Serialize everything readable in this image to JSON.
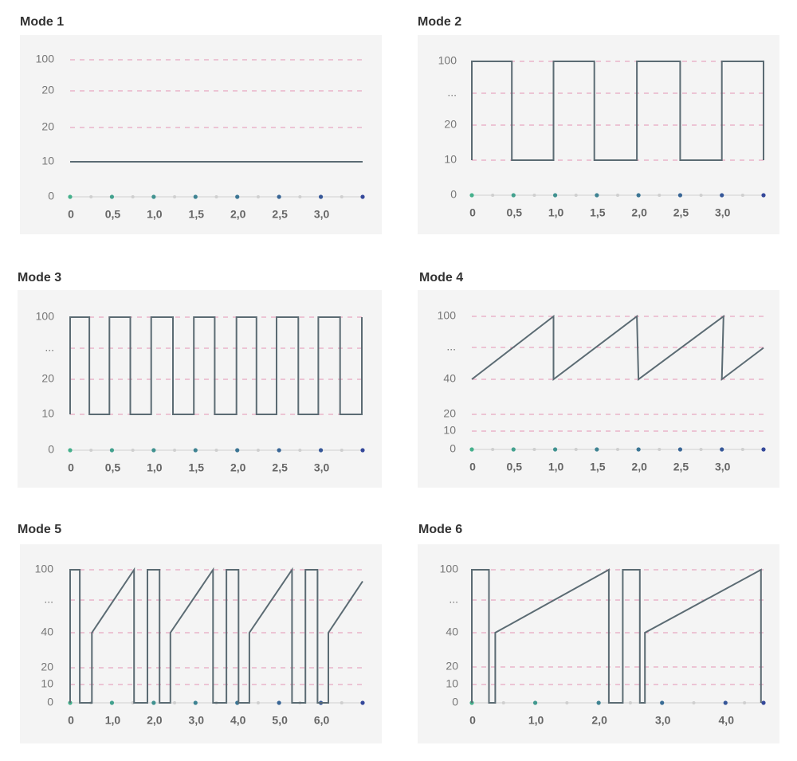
{
  "chart_data": [
    {
      "type": "line",
      "title": "Mode 1",
      "xlim": [
        0,
        3.5
      ],
      "xticks": [
        0,
        {
          "value": 0.5,
          "label": "0,5"
        },
        {
          "value": 1,
          "label": "1,0"
        },
        {
          "value": 1.5,
          "label": "1,5"
        },
        {
          "value": 2,
          "label": "2,0"
        },
        {
          "value": 2.5,
          "label": "2,5"
        },
        {
          "value": 3,
          "label": "3,0"
        }
      ],
      "yticks": [
        100,
        {
          "value": null,
          "label": "20"
        },
        20,
        10,
        0
      ],
      "grid": true,
      "color": "#5b6b73",
      "x": [
        0,
        3.5
      ],
      "values": [
        10,
        10
      ]
    },
    {
      "type": "line",
      "title": "Mode 2",
      "xlim": [
        0,
        3.5
      ],
      "xticks": [
        0,
        {
          "value": 0.5,
          "label": "0,5"
        },
        {
          "value": 1,
          "label": "1,0"
        },
        {
          "value": 1.5,
          "label": "1,5"
        },
        {
          "value": 2,
          "label": "2,0"
        },
        {
          "value": 2.5,
          "label": "2,5"
        },
        {
          "value": 3,
          "label": "3,0"
        }
      ],
      "yticks": [
        100,
        {
          "value": null,
          "label": "..."
        },
        20,
        10,
        0
      ],
      "grid": true,
      "color": "#5b6b73",
      "x": [
        0,
        0,
        0.48,
        0.48,
        0.98,
        0.98,
        1.47,
        1.47,
        1.98,
        1.98,
        2.5,
        2.5,
        3.0,
        3.0,
        3.5,
        3.5
      ],
      "values": [
        10,
        100,
        100,
        10,
        10,
        100,
        100,
        10,
        10,
        100,
        100,
        10,
        10,
        100,
        100,
        10
      ]
    },
    {
      "type": "line",
      "title": "Mode 3",
      "xlim": [
        0,
        3.5
      ],
      "xticks": [
        0,
        {
          "value": 0.5,
          "label": "0,5"
        },
        {
          "value": 1,
          "label": "1,0"
        },
        {
          "value": 1.5,
          "label": "1,5"
        },
        {
          "value": 2,
          "label": "2,0"
        },
        {
          "value": 2.5,
          "label": "2,5"
        },
        {
          "value": 3,
          "label": "3,0"
        }
      ],
      "yticks": [
        100,
        {
          "value": null,
          "label": "..."
        },
        20,
        10,
        0
      ],
      "grid": true,
      "color": "#5b6b73",
      "x": [
        0,
        0,
        0.23,
        0.23,
        0.47,
        0.47,
        0.72,
        0.72,
        0.97,
        0.97,
        1.23,
        1.23,
        1.48,
        1.48,
        1.73,
        1.73,
        1.99,
        1.99,
        2.23,
        2.23,
        2.47,
        2.47,
        2.73,
        2.73,
        2.97,
        2.97,
        3.23,
        3.23,
        3.49,
        3.49
      ],
      "values": [
        10,
        100,
        100,
        10,
        10,
        100,
        100,
        10,
        10,
        100,
        100,
        10,
        10,
        100,
        100,
        10,
        10,
        100,
        100,
        10,
        10,
        100,
        100,
        10,
        10,
        100,
        100,
        10,
        10,
        100
      ]
    },
    {
      "type": "line",
      "title": "Mode 4",
      "xlim": [
        0,
        3.5
      ],
      "xticks": [
        0,
        {
          "value": 0.5,
          "label": "0,5"
        },
        {
          "value": 1,
          "label": "1,0"
        },
        {
          "value": 1.5,
          "label": "1,5"
        },
        {
          "value": 2,
          "label": "2,0"
        },
        {
          "value": 2.5,
          "label": "2,5"
        },
        {
          "value": 3,
          "label": "3,0"
        }
      ],
      "yticks": [
        100,
        {
          "value": null,
          "label": "..."
        },
        40,
        20,
        10,
        0
      ],
      "grid": true,
      "color": "#5b6b73",
      "x": [
        0,
        0.98,
        0.98,
        1.98,
        2.0,
        3.02,
        3.0,
        3.5
      ],
      "values": [
        40,
        100,
        40,
        100,
        40,
        100,
        40,
        70
      ]
    },
    {
      "type": "line",
      "title": "Mode 5",
      "xlim": [
        0,
        7
      ],
      "xticks": [
        0,
        {
          "value": 1,
          "label": "1,0"
        },
        {
          "value": 2,
          "label": "2,0"
        },
        {
          "value": 3,
          "label": "3,0"
        },
        {
          "value": 4,
          "label": "4,0"
        },
        {
          "value": 5,
          "label": "5,0"
        },
        {
          "value": 6,
          "label": "6,0"
        }
      ],
      "yticks": [
        100,
        {
          "value": null,
          "label": "..."
        },
        40,
        20,
        10,
        0
      ],
      "grid": true,
      "color": "#5b6b73",
      "x": [
        0,
        0,
        0.23,
        0.23,
        0.52,
        0.52,
        1.53,
        1.53,
        1.85,
        1.85,
        2.14,
        2.14,
        2.4,
        2.4,
        3.42,
        3.42,
        3.74,
        3.74,
        4.03,
        4.03,
        4.29,
        4.29,
        5.31,
        5.31,
        5.63,
        5.63,
        5.92,
        5.92,
        6.18,
        6.18,
        7.0
      ],
      "values": [
        0,
        100,
        100,
        0,
        0,
        40,
        100,
        0,
        0,
        100,
        100,
        0,
        0,
        40,
        100,
        0,
        0,
        100,
        100,
        0,
        0,
        40,
        100,
        0,
        0,
        100,
        100,
        0,
        0,
        40,
        89
      ]
    },
    {
      "type": "line",
      "title": "Mode 6",
      "xlim": [
        0,
        4.6
      ],
      "xticks": [
        0,
        {
          "value": 1,
          "label": "1,0"
        },
        {
          "value": 2,
          "label": "2,0"
        },
        {
          "value": 3,
          "label": "3,0"
        },
        {
          "value": 4,
          "label": "4,0"
        }
      ],
      "yticks": [
        100,
        {
          "value": null,
          "label": "..."
        },
        40,
        20,
        10,
        0
      ],
      "grid": true,
      "color": "#5b6b73",
      "x": [
        0,
        0,
        0.27,
        0.27,
        0.37,
        0.37,
        2.16,
        2.16,
        2.38,
        2.38,
        2.65,
        2.65,
        2.73,
        2.73,
        4.56,
        4.56
      ],
      "values": [
        0,
        100,
        100,
        0,
        0,
        40,
        100,
        0,
        0,
        100,
        100,
        0,
        0,
        40,
        100,
        0
      ]
    }
  ]
}
